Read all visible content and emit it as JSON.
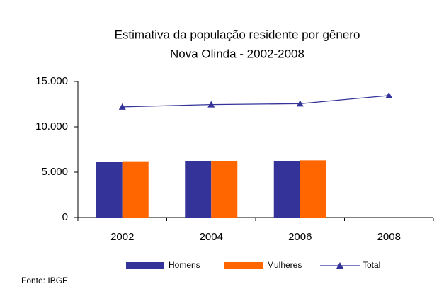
{
  "chart_data": {
    "type": "bar",
    "title": "Estimativa da população residente por gênero",
    "subtitle": "Nova Olinda -  2002-2008",
    "categories": [
      "2002",
      "2004",
      "2006",
      "2008"
    ],
    "series": [
      {
        "name": "Homens",
        "color": "#333399",
        "values": [
          6100,
          6250,
          6250,
          null
        ]
      },
      {
        "name": "Mulheres",
        "color": "#ff6600",
        "values": [
          6200,
          6250,
          6300,
          null
        ]
      },
      {
        "name": "Total",
        "color": "#333399",
        "type": "line",
        "values": [
          12200,
          12450,
          12550,
          13450
        ]
      }
    ],
    "ylim": [
      0,
      15000
    ],
    "yticks": [
      0,
      {
        "value": 5000,
        "label": "5.000"
      },
      {
        "value": 10000,
        "label": "10.000"
      },
      {
        "value": 15000,
        "label": "15.000"
      }
    ],
    "legend": "bottom",
    "source": "Fonte: IBGE"
  }
}
